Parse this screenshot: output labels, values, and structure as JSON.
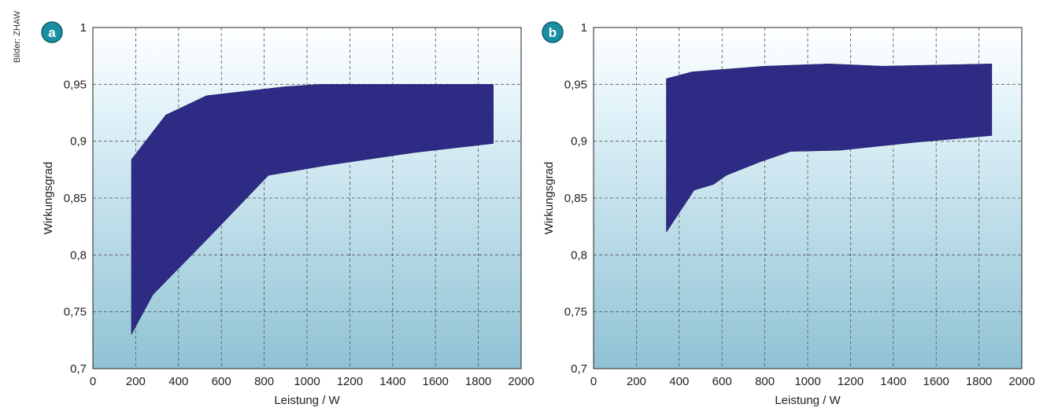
{
  "credit": "Bilder: ZHAW",
  "colors": {
    "band": "#2e2b85",
    "badge": "#1a8ea3",
    "background_top": "#ffffff",
    "background_bottom": "#8fc2d4"
  },
  "chart_data": [
    {
      "type": "area",
      "badge": "a",
      "xlabel": "Leistung / W",
      "ylabel": "Wirkungsgrad",
      "xlim": [
        0,
        2000
      ],
      "ylim": [
        0.7,
        1
      ],
      "x_ticks": [
        "0",
        "200",
        "400",
        "600",
        "800",
        "1000",
        "1200",
        "1400",
        "1600",
        "1800",
        "2000"
      ],
      "y_ticks": [
        "0,7",
        "0,75",
        "0,8",
        "0,85",
        "0,9",
        "0,95",
        "1"
      ],
      "grid": true,
      "upper": [
        [
          180,
          0.884
        ],
        [
          340,
          0.923
        ],
        [
          530,
          0.94
        ],
        [
          900,
          0.948
        ],
        [
          1060,
          0.95
        ],
        [
          1870,
          0.95
        ]
      ],
      "lower": [
        [
          180,
          0.73
        ],
        [
          280,
          0.765
        ],
        [
          540,
          0.815
        ],
        [
          820,
          0.87
        ],
        [
          1100,
          0.879
        ],
        [
          1500,
          0.89
        ],
        [
          1870,
          0.898
        ]
      ]
    },
    {
      "type": "area",
      "badge": "b",
      "xlabel": "Leistung / W",
      "ylabel": "Wirkungsgrad",
      "xlim": [
        0,
        2000
      ],
      "ylim": [
        0.7,
        1
      ],
      "x_ticks": [
        "0",
        "200",
        "400",
        "600",
        "800",
        "1000",
        "1200",
        "1400",
        "1600",
        "1800",
        "2000"
      ],
      "y_ticks": [
        "0,7",
        "0,75",
        "0,8",
        "0,85",
        "0,9",
        "0,95",
        "1"
      ],
      "grid": true,
      "upper": [
        [
          340,
          0.955
        ],
        [
          460,
          0.961
        ],
        [
          800,
          0.966
        ],
        [
          1100,
          0.968
        ],
        [
          1350,
          0.966
        ],
        [
          1860,
          0.968
        ]
      ],
      "lower": [
        [
          340,
          0.82
        ],
        [
          470,
          0.857
        ],
        [
          560,
          0.862
        ],
        [
          620,
          0.87
        ],
        [
          780,
          0.882
        ],
        [
          920,
          0.891
        ],
        [
          1150,
          0.892
        ],
        [
          1500,
          0.899
        ],
        [
          1860,
          0.905
        ]
      ]
    }
  ]
}
